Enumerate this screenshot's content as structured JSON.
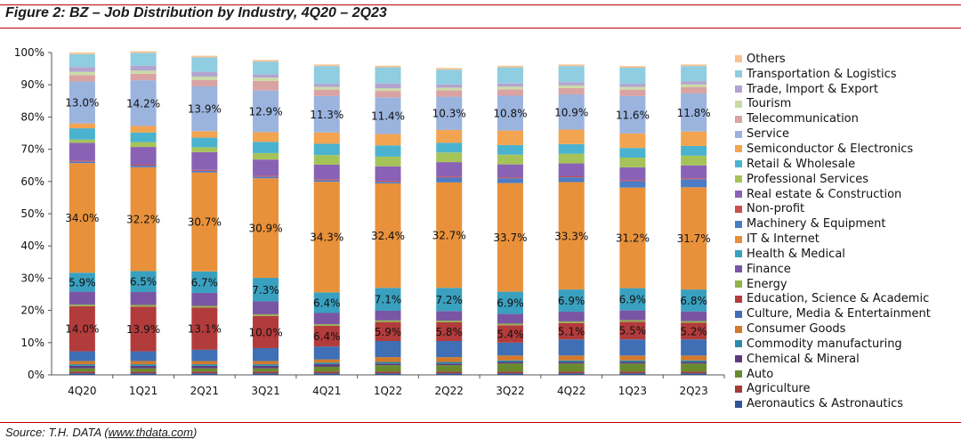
{
  "figure": {
    "title": "Figure 2: BZ – Job Distribution by Industry, 4Q20 – 2Q23",
    "source_prefix": "Source: T.H. DATA (",
    "source_link": "www.thdata.com",
    "source_suffix": ")"
  },
  "chart_data": {
    "type": "bar",
    "stacked": true,
    "title": "",
    "xlabel": "",
    "ylabel": "",
    "ylim": [
      0,
      100
    ],
    "y_ticks": [
      "0%",
      "10%",
      "20%",
      "30%",
      "40%",
      "50%",
      "60%",
      "70%",
      "80%",
      "90%",
      "100%"
    ],
    "grid": false,
    "legend_position": "right",
    "categories": [
      "4Q20",
      "1Q21",
      "2Q21",
      "3Q21",
      "4Q21",
      "1Q22",
      "2Q22",
      "3Q22",
      "4Q22",
      "1Q23",
      "2Q23"
    ],
    "series": [
      {
        "name": "Aeronautics & Astronautics",
        "color": "#2f5597",
        "values": [
          0.5,
          0.5,
          0.5,
          0.5,
          0.5,
          0.5,
          0.5,
          0.5,
          0.5,
          0.5,
          0.5
        ]
      },
      {
        "name": "Agriculture",
        "color": "#a33a3a",
        "values": [
          0.5,
          0.5,
          0.5,
          0.5,
          0.5,
          0.5,
          0.5,
          0.5,
          0.5,
          0.5,
          0.5
        ]
      },
      {
        "name": "Auto",
        "color": "#6a8a2e",
        "values": [
          1.0,
          1.0,
          1.0,
          1.0,
          1.5,
          2.0,
          2.0,
          2.5,
          2.5,
          2.5,
          2.5
        ]
      },
      {
        "name": "Chemical & Mineral",
        "color": "#5c3d7a",
        "values": [
          0.8,
          0.8,
          0.8,
          0.8,
          0.8,
          0.5,
          0.5,
          0.5,
          0.5,
          0.5,
          0.5
        ]
      },
      {
        "name": "Commodity manufacturing",
        "color": "#2d8aa8",
        "values": [
          0.5,
          0.5,
          0.5,
          0.5,
          0.5,
          0.5,
          0.5,
          0.5,
          0.5,
          0.5,
          0.5
        ]
      },
      {
        "name": "Consumer Goods",
        "color": "#d27a2c",
        "values": [
          1.0,
          1.0,
          1.0,
          1.0,
          1.0,
          1.5,
          1.5,
          1.5,
          1.5,
          1.5,
          1.5
        ]
      },
      {
        "name": "Culture, Media & Entertainment",
        "color": "#3f6fb5",
        "values": [
          3.0,
          3.0,
          3.5,
          4.0,
          4.0,
          5.0,
          5.0,
          4.0,
          5.0,
          5.0,
          5.0
        ]
      },
      {
        "name": "Education, Science & Academic",
        "color": "#b23b3b",
        "values": [
          14.0,
          13.9,
          13.1,
          10.0,
          6.4,
          5.9,
          5.8,
          5.4,
          5.1,
          5.5,
          5.2
        ]
      },
      {
        "name": "Energy",
        "color": "#93b24d",
        "values": [
          0.5,
          0.5,
          0.5,
          0.5,
          0.5,
          0.5,
          0.5,
          0.5,
          0.5,
          0.5,
          0.5
        ]
      },
      {
        "name": "Finance",
        "color": "#7a55a3",
        "values": [
          4.0,
          4.0,
          4.0,
          4.0,
          3.5,
          3.0,
          3.0,
          3.0,
          3.0,
          3.0,
          3.0
        ]
      },
      {
        "name": "Health & Medical",
        "color": "#3aa0bf",
        "values": [
          5.9,
          6.5,
          6.7,
          7.3,
          6.4,
          7.1,
          7.2,
          6.9,
          6.9,
          6.9,
          6.8
        ]
      },
      {
        "name": "IT & Internet",
        "color": "#e8913a",
        "values": [
          34.0,
          32.2,
          30.7,
          30.9,
          34.3,
          32.4,
          32.7,
          33.7,
          33.3,
          31.2,
          31.7
        ]
      },
      {
        "name": "Machinery & Equipment",
        "color": "#4d7cc7",
        "values": [
          0.5,
          0.5,
          0.5,
          0.5,
          0.5,
          0.5,
          1.5,
          1.5,
          1.5,
          2.0,
          2.5
        ]
      },
      {
        "name": "Non-profit",
        "color": "#c95050",
        "values": [
          0.3,
          0.3,
          0.3,
          0.3,
          0.3,
          0.3,
          0.3,
          0.3,
          0.3,
          0.3,
          0.3
        ]
      },
      {
        "name": "Real estate & Construction",
        "color": "#8a62b5",
        "values": [
          5.5,
          5.5,
          5.5,
          5.0,
          4.5,
          4.5,
          4.5,
          4.0,
          4.0,
          4.0,
          4.0
        ]
      },
      {
        "name": "Professional Services",
        "color": "#a6c35a",
        "values": [
          1.0,
          1.5,
          1.5,
          2.0,
          3.0,
          3.0,
          3.0,
          3.0,
          3.0,
          3.0,
          3.0
        ]
      },
      {
        "name": "Retail & Wholesale",
        "color": "#4bb3cf",
        "values": [
          3.5,
          3.0,
          3.0,
          3.5,
          3.5,
          3.5,
          3.0,
          3.0,
          3.0,
          3.0,
          3.0
        ]
      },
      {
        "name": "Semiconductor & Electronics",
        "color": "#f2a451",
        "values": [
          1.5,
          2.0,
          2.0,
          3.0,
          3.5,
          3.5,
          4.0,
          4.5,
          4.5,
          4.5,
          4.5
        ]
      },
      {
        "name": "Service",
        "color": "#9bb4de",
        "values": [
          13.0,
          14.2,
          13.9,
          12.9,
          11.3,
          11.4,
          10.3,
          10.8,
          10.9,
          11.6,
          11.8
        ]
      },
      {
        "name": "Telecommunication",
        "color": "#d9a3a3",
        "values": [
          2.0,
          2.0,
          2.0,
          3.0,
          2.0,
          2.0,
          2.0,
          2.0,
          2.0,
          2.0,
          2.0
        ]
      },
      {
        "name": "Tourism",
        "color": "#c9dba4",
        "values": [
          1.0,
          1.0,
          1.0,
          1.0,
          0.8,
          0.8,
          0.8,
          0.8,
          0.8,
          0.8,
          0.8
        ]
      },
      {
        "name": "Trade, Import & Export",
        "color": "#b3a4cf",
        "values": [
          1.5,
          1.5,
          1.5,
          1.0,
          1.0,
          1.5,
          1.0,
          1.0,
          1.0,
          1.0,
          1.0
        ]
      },
      {
        "name": "Transportation & Logistics",
        "color": "#8fcde0",
        "values": [
          4.0,
          4.0,
          4.5,
          4.0,
          5.5,
          5.0,
          4.6,
          5.0,
          5.0,
          5.0,
          4.7
        ]
      },
      {
        "name": "Others",
        "color": "#f7c28f",
        "values": [
          0.5,
          0.5,
          0.5,
          0.5,
          0.5,
          0.5,
          0.5,
          0.5,
          0.5,
          0.5,
          0.5
        ]
      }
    ],
    "labeled_series": [
      "Education, Science & Academic",
      "Health & Medical",
      "IT & Internet",
      "Service"
    ],
    "data_labels": {
      "Education, Science & Academic": [
        "14.0%",
        "13.9%",
        "13.1%",
        "10.0%",
        "6.4%",
        "5.9%",
        "5.8%",
        "5.4%",
        "5.1%",
        "5.5%",
        "5.2%"
      ],
      "Health & Medical": [
        "5.9%",
        "6.5%",
        "6.7%",
        "7.3%",
        "6.4%",
        "7.1%",
        "7.2%",
        "6.9%",
        "6.9%",
        "6.9%",
        "6.8%"
      ],
      "IT & Internet": [
        "34.0%",
        "32.2%",
        "30.7%",
        "30.9%",
        "34.3%",
        "32.4%",
        "32.7%",
        "33.7%",
        "33.3%",
        "31.2%",
        "31.7%"
      ],
      "Service": [
        "13.0%",
        "14.2%",
        "13.9%",
        "12.9%",
        "11.3%",
        "11.4%",
        "10.3%",
        "10.8%",
        "10.9%",
        "11.6%",
        "11.8%"
      ]
    }
  }
}
